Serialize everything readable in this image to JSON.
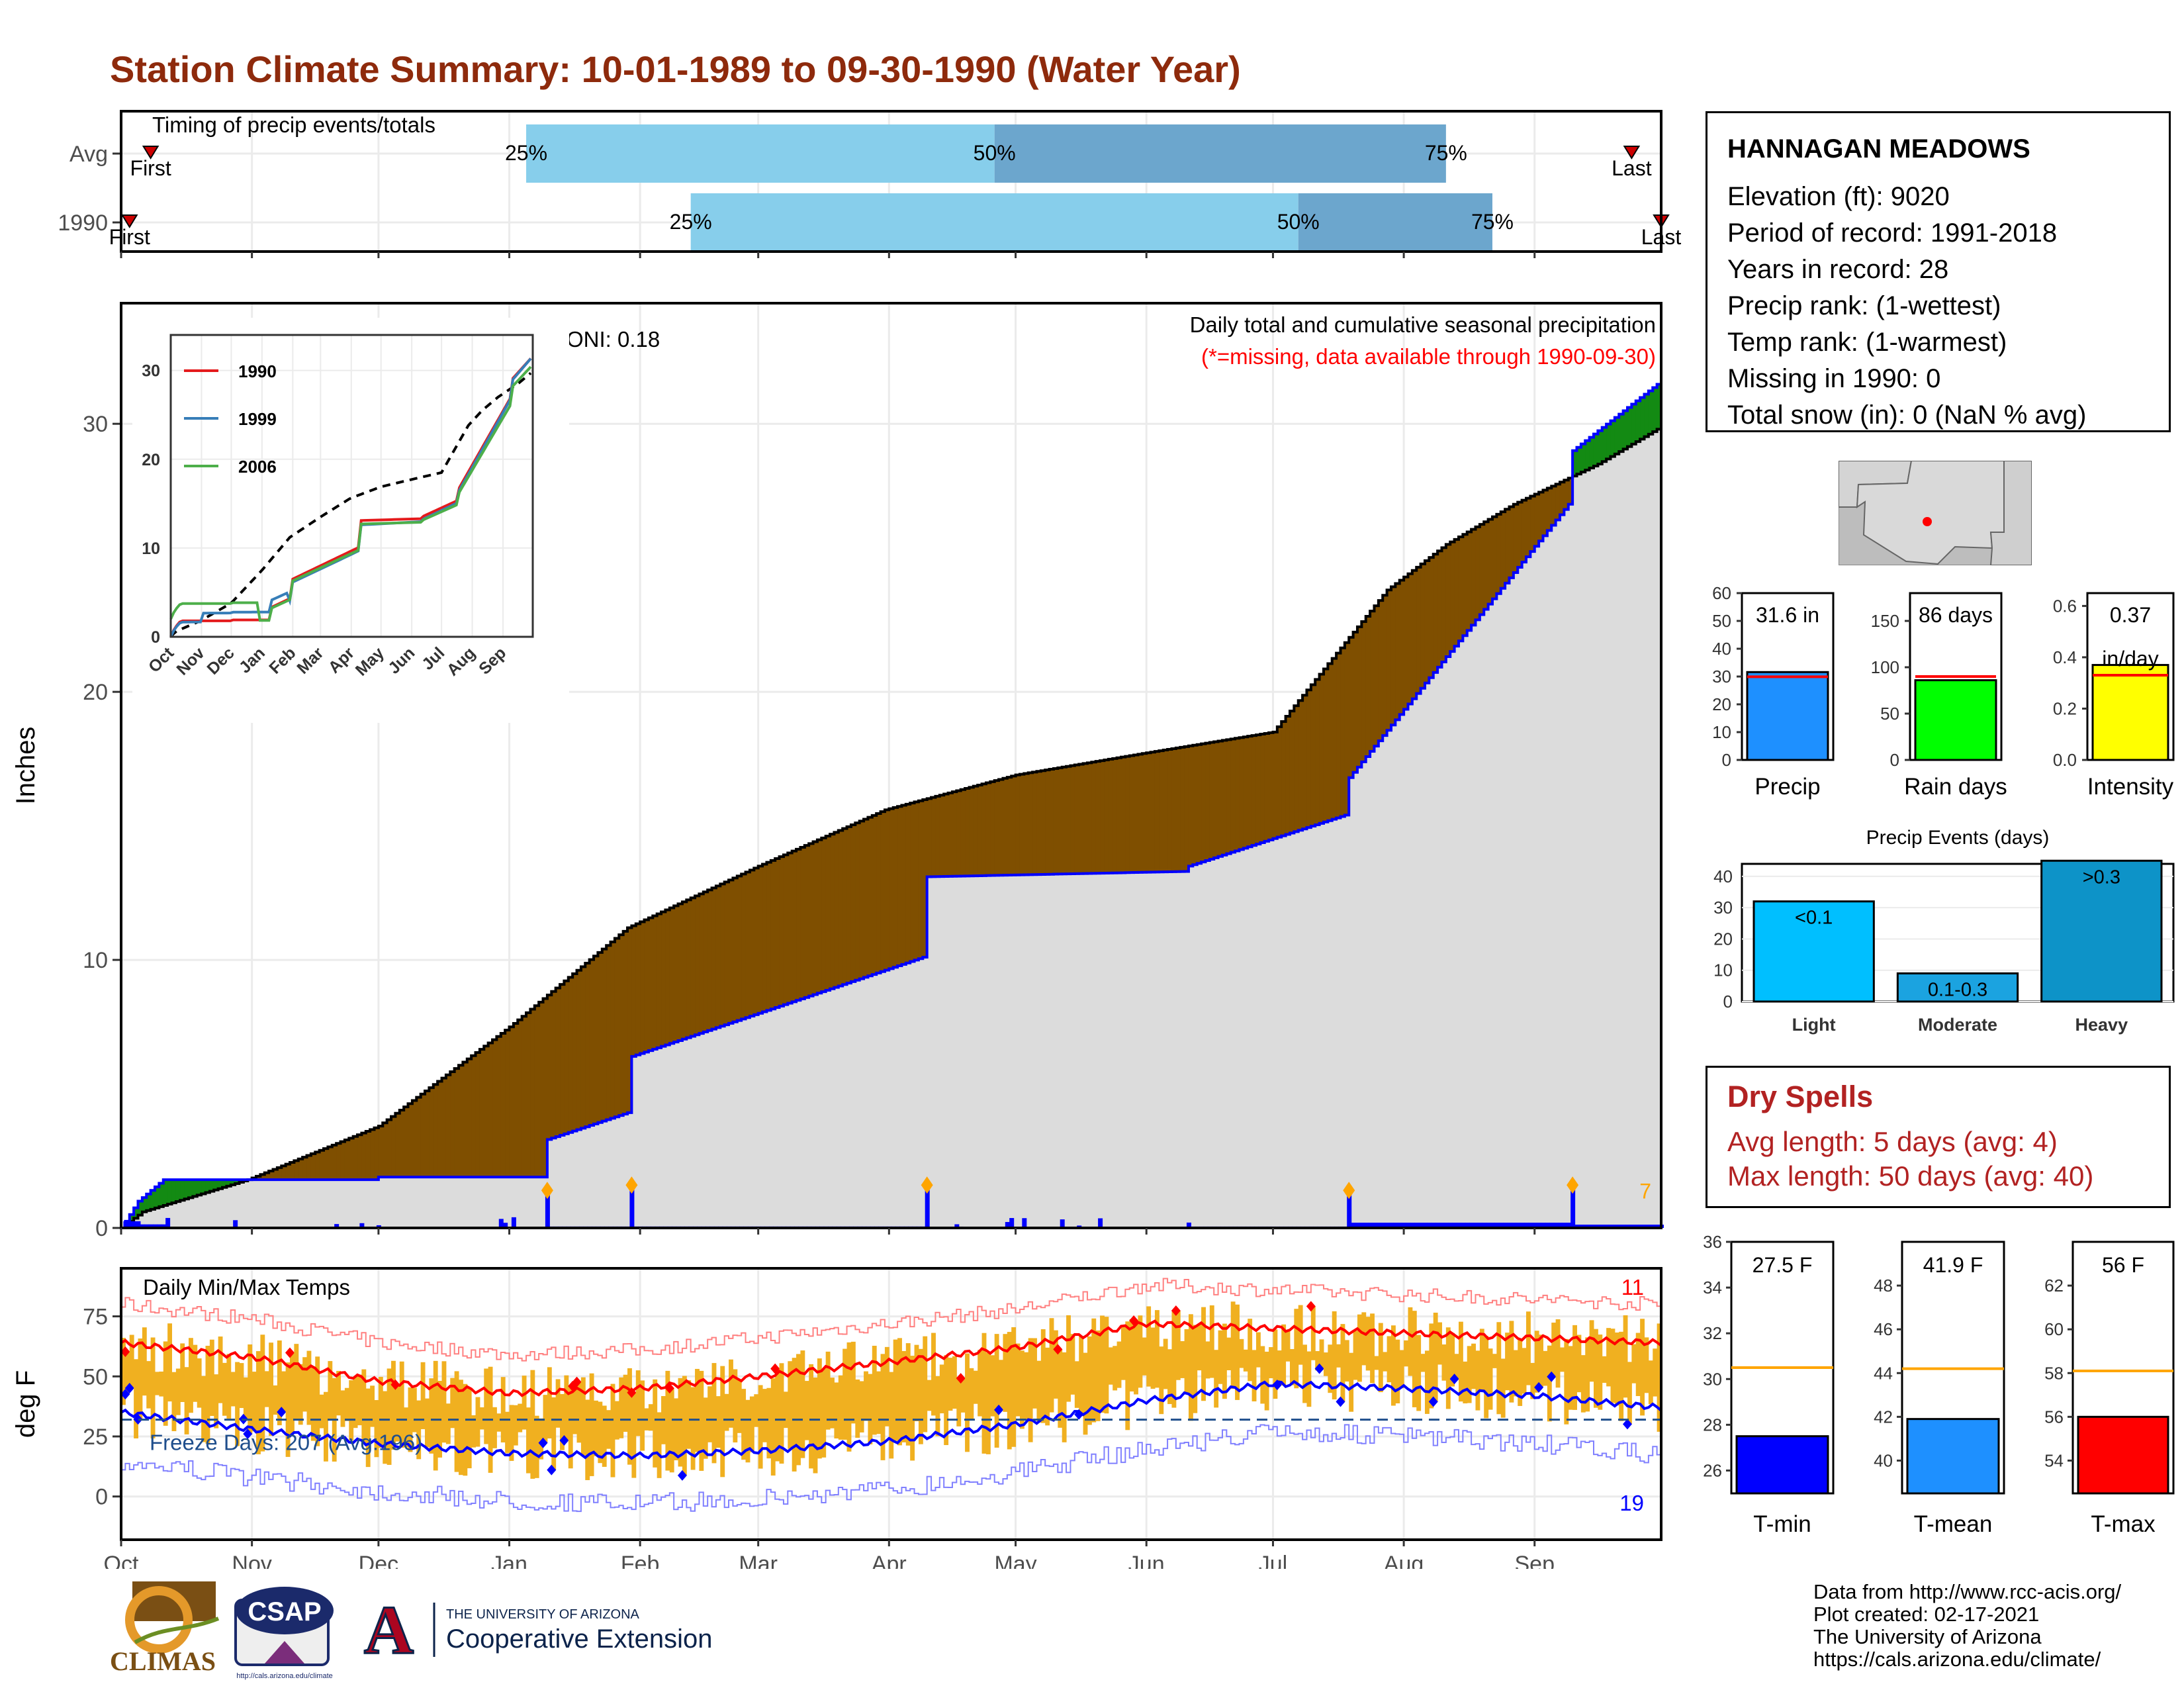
{
  "title": "Station Climate Summary: 10-01-1989 to 09-30-1990 (Water Year)",
  "colors": {
    "title": "#8e2a0c",
    "precip": "#0000ff",
    "avg_fill": "#dcdcdc",
    "deficit": "#7f4f00",
    "surplus": "#138a13",
    "highlight": "#ffa500",
    "tmax": "#ff0000",
    "tmin": "#0000ff",
    "temp_bar": "#f0b020",
    "dry_spell": "#b22222"
  },
  "months": [
    "Oct",
    "Nov",
    "Dec",
    "Jan",
    "Feb",
    "Mar",
    "Apr",
    "May",
    "Jun",
    "Jul",
    "Aug",
    "Sep"
  ],
  "month_days": [
    31,
    30,
    31,
    31,
    28,
    31,
    30,
    31,
    30,
    31,
    31,
    30
  ],
  "timing": {
    "label": "Timing of precip events/totals",
    "rows": [
      {
        "name": "Avg",
        "first_label": "First",
        "last_label": "Last",
        "first_day": 7,
        "last_day": 358,
        "p25_day": 96,
        "p50_day": 207,
        "p75_day": 314,
        "p25_label": "25%",
        "p50_label": "50%",
        "p75_label": "75%"
      },
      {
        "name": "1990",
        "first_label": "First",
        "last_label": "Last",
        "first_day": 2,
        "last_day": 365,
        "p25_day": 135,
        "p50_day": 279,
        "p75_day": 325,
        "p25_label": "25%",
        "p50_label": "50%",
        "p75_label": "75%"
      }
    ]
  },
  "precip_panel": {
    "ylabel": "Inches",
    "yticks": [
      0,
      10,
      20,
      30
    ],
    "ylim": [
      0,
      34.5
    ],
    "oni": "ONI: 0.18",
    "caption": "Daily total and cumulative seasonal precipitation",
    "caption2": "(*=missing, data available through 1990-09-30)",
    "daily_bar_label": "7"
  },
  "inset": {
    "xticks": [
      "Oct",
      "Nov",
      "Dec",
      "Jan",
      "Feb",
      "Mar",
      "Apr",
      "May",
      "Jun",
      "Jul",
      "Aug",
      "Sep"
    ],
    "yticks": [
      0,
      10,
      20,
      30
    ],
    "series": [
      {
        "name": "1990",
        "color": "#e41a1c"
      },
      {
        "name": "1999",
        "color": "#377eb8"
      },
      {
        "name": "2006",
        "color": "#4daf4a"
      }
    ]
  },
  "temp_panel": {
    "ylabel": "deg F",
    "label": "Daily Min/Max Temps",
    "yticks": [
      0,
      25,
      50,
      75
    ],
    "ylim": [
      -18,
      95
    ],
    "freeze_text": "Freeze Days: 207 (Avg:196)",
    "freeze_line": 32,
    "hot_count": "11",
    "cold_count": "19"
  },
  "station": {
    "name": "HANNAGAN MEADOWS",
    "lines": [
      "Elevation (ft): 9020",
      "Period of record: 1991-2018",
      "Years in record: 28",
      "Precip rank:  (1-wettest)",
      "Temp rank:  (1-warmest)",
      "Missing in 1990: 0",
      "Total snow (in): 0 (NaN % avg)"
    ]
  },
  "precip_bars": [
    {
      "key": "precip",
      "value": 31.6,
      "avg": 29.9,
      "ymax": 60,
      "ticks": [
        0,
        10,
        20,
        30,
        40,
        50,
        60
      ],
      "color": "#1e90ff",
      "label": "31.6 in",
      "xlabel": "Precip"
    },
    {
      "key": "raindays",
      "value": 86,
      "avg": 90,
      "ymax": 180,
      "ticks": [
        0,
        50,
        100,
        150
      ],
      "color": "#00ff00",
      "label": "86 days",
      "xlabel": "Rain days"
    },
    {
      "key": "intensity",
      "value": 0.37,
      "avg": 0.33,
      "ymax": 0.65,
      "ticks": [
        0.0,
        0.2,
        0.4,
        0.6
      ],
      "color": "#ffff00",
      "label": "0.37",
      "label2": "in/day",
      "xlabel": "Intensity"
    }
  ],
  "events": {
    "title": "Precip Events (days)",
    "ticks": [
      0,
      10,
      20,
      30,
      40
    ],
    "ymax": 44,
    "bars": [
      {
        "name": "Light",
        "value": 32,
        "label": "<0.1",
        "color": "#00bfff"
      },
      {
        "name": "Moderate",
        "value": 9,
        "label": "0.1-0.3",
        "color": "#1ba3e0"
      },
      {
        "name": "Heavy",
        "value": 45,
        "label": ">0.3",
        "color": "#0d93c8"
      }
    ]
  },
  "dry_spells": {
    "title": "Dry Spells",
    "avg_line": "Avg length: 5 days (avg: 4)",
    "max_line": "Max length: 50 days (avg: 40)"
  },
  "temp_bars": [
    {
      "name": "T-min",
      "label": "27.5 F",
      "value": 27.5,
      "avg": 30.5,
      "ymin": 25,
      "ymax": 36,
      "ticks": [
        26,
        28,
        30,
        32,
        34,
        36
      ],
      "color": "#0000ff"
    },
    {
      "name": "T-mean",
      "label": "41.9 F",
      "value": 41.9,
      "avg": 44.2,
      "ymin": 38.5,
      "ymax": 50,
      "ticks": [
        40,
        42,
        44,
        46,
        48
      ],
      "color": "#1e90ff"
    },
    {
      "name": "T-max",
      "label": "56 F",
      "value": 56,
      "avg": 58.1,
      "ymin": 52.5,
      "ymax": 64,
      "ticks": [
        54,
        56,
        58,
        60,
        62
      ],
      "color": "#ff0000"
    }
  ],
  "credits": [
    "Data from http://www.rcc-acis.org/",
    "Plot created: 02-17-2021",
    "The University of Arizona",
    "https://cals.arizona.edu/climate/"
  ],
  "logos": {
    "climas": "CLIMAS",
    "csap": "CSAP",
    "csap_url": "http://cals.arizona.edu/climate",
    "ua_letter": "A",
    "ua_small": "THE UNIVERSITY OF ARIZONA",
    "ua_big": "Cooperative Extension"
  },
  "chart_data": [
    {
      "type": "area",
      "title": "Daily total and cumulative seasonal precipitation",
      "ylabel": "Inches",
      "ylim": [
        0,
        34.5
      ],
      "x_months": [
        "Oct",
        "Nov",
        "Dec",
        "Jan",
        "Feb",
        "Mar",
        "Apr",
        "May",
        "Jun",
        "Jul",
        "Aug",
        "Sep"
      ],
      "series": [
        {
          "name": "Avg cumulative",
          "days": [
            0,
            5,
            30,
            61,
            92,
            120,
            151,
            181,
            212,
            242,
            273,
            300,
            314,
            330,
            350,
            364
          ],
          "values": [
            0,
            0.6,
            1.8,
            3.8,
            7.5,
            11.2,
            13.5,
            15.6,
            16.9,
            17.7,
            18.5,
            23.8,
            25.5,
            27.0,
            28.5,
            29.8
          ]
        },
        {
          "name": "1990 cumulative",
          "days": [
            0,
            4,
            7,
            10,
            20,
            60,
            61,
            100,
            101,
            120,
            121,
            190,
            191,
            252,
            253,
            290,
            291,
            343,
            344,
            365
          ],
          "values": [
            0,
            1.0,
            1.4,
            1.8,
            1.8,
            1.8,
            1.9,
            1.9,
            3.3,
            4.3,
            6.4,
            10.1,
            13.1,
            13.3,
            13.5,
            15.4,
            16.8,
            27.0,
            29.0,
            31.6
          ]
        }
      ]
    },
    {
      "type": "bar",
      "title": "Daily Min/Max Temps",
      "ylabel": "deg F",
      "ylim": [
        -18,
        95
      ],
      "series": [
        {
          "name": "Avg max",
          "days": [
            0,
            31,
            61,
            92,
            123,
            151,
            182,
            212,
            243,
            273,
            304,
            335,
            365
          ],
          "values": [
            64,
            58,
            48,
            43,
            45,
            50,
            56,
            62,
            72,
            70,
            68,
            66,
            64
          ]
        },
        {
          "name": "Avg min",
          "days": [
            0,
            31,
            61,
            92,
            123,
            151,
            182,
            212,
            243,
            273,
            304,
            335,
            365
          ],
          "values": [
            35,
            28,
            22,
            18,
            17,
            19,
            23,
            30,
            40,
            47,
            45,
            42,
            37
          ]
        }
      ]
    },
    {
      "type": "bar",
      "categories": [
        "Precip",
        "Rain days",
        "Intensity"
      ],
      "values": [
        31.6,
        86,
        0.37
      ]
    },
    {
      "type": "bar",
      "title": "Precip Events (days)",
      "categories": [
        "Light",
        "Moderate",
        "Heavy"
      ],
      "values": [
        32,
        9,
        45
      ]
    },
    {
      "type": "bar",
      "categories": [
        "T-min",
        "T-mean",
        "T-max"
      ],
      "values": [
        27.5,
        41.9,
        56
      ]
    }
  ]
}
